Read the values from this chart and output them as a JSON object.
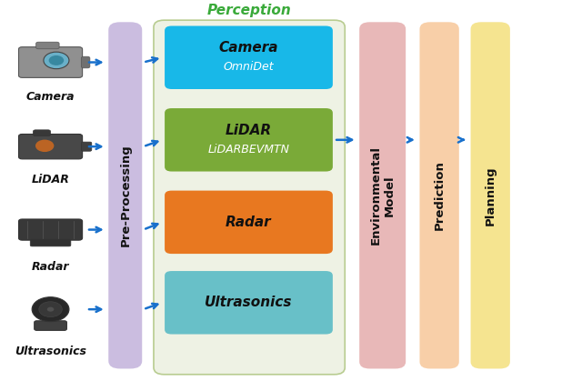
{
  "bg_color": "#ffffff",
  "perception_bg": "#eef2e4",
  "perception_label_color": "#3aaa3a",
  "perception_border": "#b8cc90",
  "preprocessing_color": "#cbbde0",
  "env_model_color": "#e8b8b8",
  "prediction_color": "#f8cfa8",
  "planning_color": "#f5e490",
  "perception_boxes": [
    {
      "label1": "Camera",
      "label2": "OmniDet",
      "color": "#18b8e8",
      "label1_color": "#111111",
      "label2_color": "#ffffff"
    },
    {
      "label1": "LiDAR",
      "label2": "LiDARBEVMTN",
      "color": "#7aaa38",
      "label1_color": "#111111",
      "label2_color": "#ffffff"
    },
    {
      "label1": "Radar",
      "label2": "",
      "color": "#e87820",
      "label1_color": "#111111",
      "label2_color": "#ffffff"
    },
    {
      "label1": "Ultrasonics",
      "label2": "",
      "color": "#68c0c8",
      "label1_color": "#111111",
      "label2_color": "#ffffff"
    }
  ],
  "sensor_labels": [
    "Camera",
    "LiDAR",
    "Radar",
    "Ultrasonics"
  ],
  "pipeline_labels": [
    "Pre-Processing",
    "Environmental\nModel",
    "Prediction",
    "Planning"
  ],
  "pipeline_colors": [
    "#cbbde0",
    "#e8b8b8",
    "#f8cfa8",
    "#f5e490"
  ],
  "arrow_color": "#1870cc",
  "arrow_lw": 1.8,
  "xlim": [
    0,
    10
  ],
  "ylim": [
    0,
    10
  ]
}
